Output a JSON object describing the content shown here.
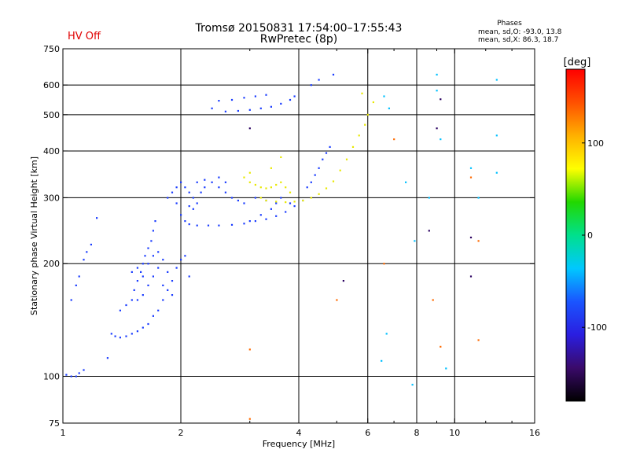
{
  "status_label": "HV Off",
  "status_color": "#e00000",
  "chart_data": {
    "type": "scatter",
    "title": "Tromsø 20150831 17:54:00–17:55:43",
    "subtitle": "RwPretec (8p)",
    "xlabel": "Frequency [MHz]",
    "ylabel": "Stationary phase Virtual Height [km]",
    "x_scale": "log2",
    "y_scale": "log",
    "xlim": [
      1,
      16
    ],
    "ylim": [
      75,
      750
    ],
    "x_ticks": [
      1,
      2,
      4,
      6,
      8,
      10,
      16
    ],
    "x_tick_labels": [
      "1",
      "2",
      "4",
      "6",
      "8",
      "10",
      "16"
    ],
    "x_gridlines": [
      2,
      4,
      6,
      8,
      10
    ],
    "x_minor_ticks": [
      3,
      5,
      7,
      9,
      12,
      14
    ],
    "y_ticks": [
      75,
      100,
      200,
      300,
      400,
      500,
      600,
      750
    ],
    "y_tick_labels": [
      "75",
      "100",
      "200",
      "300",
      "400",
      "500",
      "600",
      "750"
    ],
    "y_gridlines": [
      100,
      200,
      300,
      400,
      500,
      600
    ],
    "grid": true,
    "stats_header": "Phases",
    "stats_lines": [
      "mean, sd,O: -93.0, 13.8",
      "mean, sd,X:  86.3, 18.7"
    ],
    "colorbar": {
      "label": "[deg]",
      "range": [
        -180,
        180
      ],
      "ticks": [
        100,
        0,
        -100
      ],
      "tick_labels": [
        "100",
        "0",
        "-100"
      ],
      "stops": [
        "#000000",
        "#3a0a6a",
        "#2a1ee0",
        "#1a55ff",
        "#00c8ff",
        "#00e08c",
        "#22d800",
        "#ffff00",
        "#ffb000",
        "#ff5000",
        "#ff0000"
      ]
    },
    "series": [
      {
        "name": "O",
        "phase": -93.0,
        "color": "#1a3cff",
        "points": [
          [
            1.02,
            101
          ],
          [
            1.05,
            100
          ],
          [
            1.08,
            100
          ],
          [
            1.1,
            102
          ],
          [
            1.13,
            104
          ],
          [
            1.05,
            160
          ],
          [
            1.08,
            175
          ],
          [
            1.1,
            185
          ],
          [
            1.13,
            205
          ],
          [
            1.15,
            215
          ],
          [
            1.18,
            225
          ],
          [
            1.22,
            265
          ],
          [
            1.3,
            112
          ],
          [
            1.33,
            130
          ],
          [
            1.36,
            128
          ],
          [
            1.4,
            127
          ],
          [
            1.45,
            128
          ],
          [
            1.5,
            130
          ],
          [
            1.55,
            132
          ],
          [
            1.6,
            135
          ],
          [
            1.65,
            138
          ],
          [
            1.7,
            145
          ],
          [
            1.4,
            150
          ],
          [
            1.45,
            155
          ],
          [
            1.5,
            160
          ],
          [
            1.52,
            170
          ],
          [
            1.55,
            180
          ],
          [
            1.58,
            190
          ],
          [
            1.6,
            200
          ],
          [
            1.62,
            210
          ],
          [
            1.65,
            220
          ],
          [
            1.68,
            230
          ],
          [
            1.7,
            245
          ],
          [
            1.72,
            260
          ],
          [
            1.75,
            150
          ],
          [
            1.8,
            160
          ],
          [
            1.85,
            170
          ],
          [
            1.9,
            180
          ],
          [
            1.95,
            195
          ],
          [
            2.0,
            205
          ],
          [
            2.05,
            210
          ],
          [
            2.1,
            185
          ],
          [
            1.55,
            160
          ],
          [
            1.6,
            165
          ],
          [
            1.65,
            175
          ],
          [
            1.7,
            185
          ],
          [
            1.75,
            195
          ],
          [
            1.8,
            205
          ],
          [
            1.85,
            190
          ],
          [
            1.85,
            300
          ],
          [
            1.9,
            310
          ],
          [
            1.95,
            320
          ],
          [
            2.0,
            330
          ],
          [
            2.05,
            320
          ],
          [
            2.1,
            310
          ],
          [
            2.15,
            300
          ],
          [
            2.2,
            290
          ],
          [
            1.95,
            290
          ],
          [
            2.0,
            270
          ],
          [
            2.05,
            260
          ],
          [
            2.1,
            255
          ],
          [
            2.2,
            253
          ],
          [
            2.35,
            253
          ],
          [
            2.5,
            253
          ],
          [
            2.7,
            254
          ],
          [
            2.9,
            256
          ],
          [
            3.1,
            260
          ],
          [
            3.3,
            263
          ],
          [
            3.5,
            268
          ],
          [
            3.7,
            275
          ],
          [
            3.9,
            285
          ],
          [
            4.1,
            295
          ],
          [
            2.1,
            285
          ],
          [
            2.15,
            280
          ],
          [
            2.25,
            310
          ],
          [
            2.3,
            320
          ],
          [
            2.4,
            330
          ],
          [
            2.5,
            320
          ],
          [
            2.6,
            310
          ],
          [
            2.7,
            300
          ],
          [
            2.8,
            295
          ],
          [
            2.9,
            290
          ],
          [
            3.1,
            300
          ],
          [
            3.3,
            295
          ],
          [
            3.5,
            290
          ],
          [
            2.2,
            330
          ],
          [
            2.3,
            335
          ],
          [
            2.5,
            340
          ],
          [
            2.6,
            330
          ],
          [
            4.2,
            320
          ],
          [
            4.3,
            330
          ],
          [
            4.4,
            345
          ],
          [
            4.5,
            360
          ],
          [
            4.6,
            380
          ],
          [
            4.7,
            395
          ],
          [
            4.8,
            410
          ],
          [
            2.4,
            520
          ],
          [
            2.6,
            510
          ],
          [
            2.8,
            512
          ],
          [
            3.0,
            515
          ],
          [
            3.2,
            520
          ],
          [
            3.4,
            525
          ],
          [
            3.6,
            535
          ],
          [
            3.8,
            548
          ],
          [
            3.9,
            560
          ],
          [
            2.5,
            545
          ],
          [
            2.7,
            548
          ],
          [
            2.9,
            555
          ],
          [
            3.1,
            560
          ],
          [
            3.3,
            565
          ],
          [
            4.5,
            620
          ],
          [
            4.9,
            640
          ],
          [
            4.3,
            600
          ],
          [
            3.0,
            260
          ],
          [
            3.2,
            270
          ],
          [
            3.4,
            280
          ],
          [
            3.6,
            300
          ],
          [
            3.8,
            290
          ],
          [
            1.5,
            190
          ],
          [
            1.55,
            195
          ],
          [
            1.6,
            185
          ],
          [
            1.65,
            200
          ],
          [
            1.7,
            210
          ],
          [
            1.75,
            215
          ],
          [
            1.8,
            175
          ],
          [
            1.9,
            165
          ]
        ]
      },
      {
        "name": "X",
        "phase": 86.3,
        "color": "#e8e800",
        "points": [
          [
            3.0,
            330
          ],
          [
            3.1,
            325
          ],
          [
            3.2,
            320
          ],
          [
            3.3,
            318
          ],
          [
            3.4,
            320
          ],
          [
            3.5,
            325
          ],
          [
            3.6,
            330
          ],
          [
            3.7,
            320
          ],
          [
            3.8,
            310
          ],
          [
            3.2,
            300
          ],
          [
            3.3,
            295
          ],
          [
            3.5,
            293
          ],
          [
            3.7,
            292
          ],
          [
            3.9,
            293
          ],
          [
            4.1,
            295
          ],
          [
            4.3,
            300
          ],
          [
            4.5,
            307
          ],
          [
            4.7,
            318
          ],
          [
            4.9,
            332
          ],
          [
            5.1,
            355
          ],
          [
            5.3,
            380
          ],
          [
            5.5,
            410
          ],
          [
            5.7,
            440
          ],
          [
            5.9,
            470
          ],
          [
            2.9,
            340
          ],
          [
            3.0,
            350
          ],
          [
            3.4,
            360
          ],
          [
            3.6,
            385
          ],
          [
            6.0,
            500
          ],
          [
            6.2,
            540
          ],
          [
            5.8,
            570
          ]
        ]
      },
      {
        "name": "scattered",
        "color": "#00c0ff",
        "points": [
          [
            6.6,
            560
          ],
          [
            6.8,
            520
          ],
          [
            7.5,
            330
          ],
          [
            7.9,
            230
          ],
          [
            8.6,
            300
          ],
          [
            9.0,
            640
          ],
          [
            9.0,
            580
          ],
          [
            9.2,
            430
          ],
          [
            9.5,
            105
          ],
          [
            11.0,
            360
          ],
          [
            11.5,
            300
          ],
          [
            12.8,
            620
          ],
          [
            12.8,
            440
          ],
          [
            12.8,
            350
          ],
          [
            6.5,
            110
          ],
          [
            6.7,
            130
          ],
          [
            7.8,
            95
          ]
        ]
      },
      {
        "name": "scattered-warm",
        "color": "#ff6a00",
        "points": [
          [
            5.0,
            160
          ],
          [
            6.6,
            200
          ],
          [
            7.0,
            430
          ],
          [
            8.8,
            160
          ],
          [
            9.2,
            120
          ],
          [
            11.0,
            340
          ],
          [
            11.5,
            230
          ],
          [
            11.5,
            125
          ],
          [
            3.0,
            118
          ],
          [
            3.0,
            77
          ]
        ]
      },
      {
        "name": "scattered-dark",
        "color": "#2a0060",
        "points": [
          [
            8.6,
            245
          ],
          [
            9.0,
            460
          ],
          [
            11.0,
            235
          ],
          [
            11.0,
            185
          ],
          [
            9.2,
            550
          ],
          [
            5.2,
            180
          ],
          [
            3.0,
            460
          ]
        ]
      }
    ]
  }
}
